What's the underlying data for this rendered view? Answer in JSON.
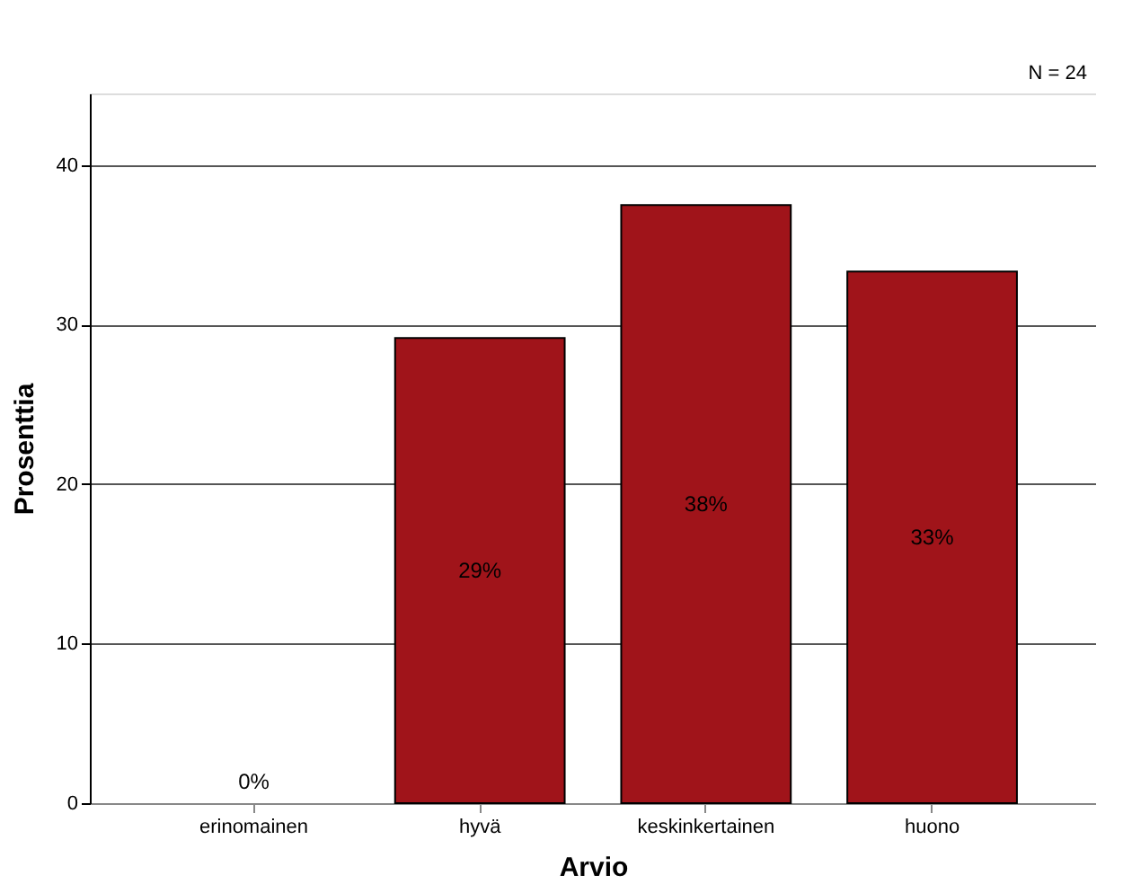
{
  "chart_data": {
    "type": "bar",
    "xlabel": "Arvio",
    "ylabel": "Prosenttia",
    "categories": [
      "erinomainen",
      "hyvä",
      "keskinkertainen",
      "huono"
    ],
    "values": [
      0,
      29.17,
      37.5,
      33.33
    ],
    "value_labels": [
      "0%",
      "29%",
      "38%",
      "33%"
    ],
    "color": "#a0141a",
    "ylim": [
      0,
      44.5
    ],
    "yticks": [
      0,
      10,
      20,
      30,
      40
    ],
    "grid": "y",
    "annotations": [
      "N = 24"
    ]
  }
}
